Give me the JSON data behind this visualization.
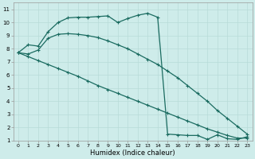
{
  "xlabel": "Humidex (Indice chaleur)",
  "bg_color": "#ceecea",
  "grid_color": "#b8dbd8",
  "line_color": "#1a6b60",
  "xlim": [
    -0.5,
    23.5
  ],
  "ylim": [
    1,
    11.5
  ],
  "xticks": [
    0,
    1,
    2,
    3,
    4,
    5,
    6,
    7,
    8,
    9,
    10,
    11,
    12,
    13,
    14,
    15,
    16,
    17,
    18,
    19,
    20,
    21,
    22,
    23
  ],
  "yticks": [
    1,
    2,
    3,
    4,
    5,
    6,
    7,
    8,
    9,
    10,
    11
  ],
  "line1_x": [
    0,
    1,
    2,
    3,
    4,
    5,
    6,
    7,
    8,
    9,
    10,
    11,
    12,
    13,
    14,
    15,
    16,
    17,
    18,
    19,
    20,
    21,
    22,
    23
  ],
  "line1_y": [
    7.7,
    8.3,
    8.2,
    9.3,
    10.0,
    10.35,
    10.4,
    10.4,
    10.45,
    10.5,
    10.0,
    10.3,
    10.55,
    10.7,
    10.4,
    1.5,
    1.45,
    1.4,
    1.4,
    1.1,
    1.45,
    1.15,
    1.1,
    1.3
  ],
  "line2_x": [
    0,
    1,
    2,
    3,
    4,
    5,
    6,
    7,
    8,
    9,
    10,
    11,
    12,
    13,
    14,
    15,
    16,
    17,
    18,
    19,
    20,
    21,
    22,
    23
  ],
  "line2_y": [
    7.7,
    7.4,
    7.1,
    6.8,
    6.5,
    6.2,
    5.9,
    5.55,
    5.2,
    4.9,
    4.6,
    4.3,
    4.0,
    3.7,
    3.4,
    3.1,
    2.8,
    2.5,
    2.2,
    1.9,
    1.65,
    1.4,
    1.2,
    1.2
  ],
  "line3_x": [
    0,
    1,
    2,
    3,
    4,
    5,
    6,
    7,
    8,
    9,
    10,
    11,
    12,
    13,
    14,
    15,
    16,
    17,
    18,
    19,
    20,
    21,
    22,
    23
  ],
  "line3_y": [
    7.7,
    7.6,
    7.9,
    8.8,
    9.1,
    9.15,
    9.1,
    9.0,
    8.85,
    8.6,
    8.3,
    8.0,
    7.6,
    7.2,
    6.8,
    6.3,
    5.8,
    5.2,
    4.6,
    4.0,
    3.3,
    2.7,
    2.1,
    1.5
  ]
}
